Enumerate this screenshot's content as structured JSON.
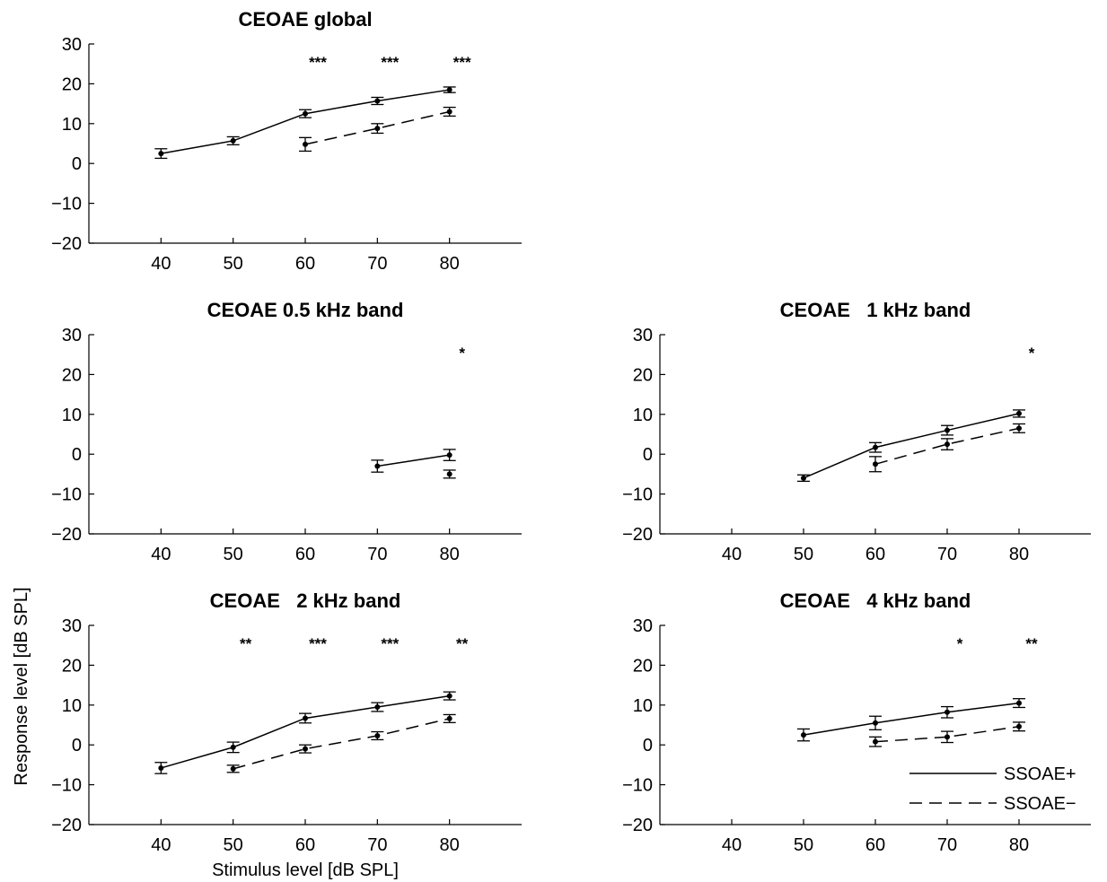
{
  "figure": {
    "ylabel": "Response level [dB SPL]",
    "xlabel": "Stimulus level [dB SPL]",
    "legend": [
      {
        "name": "SSOAE+",
        "style": "solid"
      },
      {
        "name": "SSOAE−",
        "style": "dashed"
      }
    ]
  },
  "chart_data": [
    {
      "type": "line",
      "title": "CEOAE global",
      "x_ticks": [
        40,
        50,
        60,
        70,
        80
      ],
      "y_ticks": [
        30,
        20,
        10,
        0,
        -10,
        -20
      ],
      "xlim": [
        30,
        90
      ],
      "ylim": [
        -20,
        30
      ],
      "series": [
        {
          "name": "SSOAE+",
          "style": "solid",
          "x": [
            40,
            50,
            60,
            70,
            80
          ],
          "y": [
            2.5,
            5.7,
            12.5,
            15.7,
            18.5
          ],
          "err": [
            1.2,
            1.0,
            1.0,
            0.9,
            0.7
          ]
        },
        {
          "name": "SSOAE−",
          "style": "dashed",
          "x": [
            60,
            70,
            80
          ],
          "y": [
            4.8,
            8.8,
            13.0
          ],
          "err": [
            1.7,
            1.2,
            1.1
          ]
        }
      ],
      "significance": [
        {
          "x": 60,
          "label": "***"
        },
        {
          "x": 70,
          "label": "***"
        },
        {
          "x": 80,
          "label": "***"
        }
      ]
    },
    {
      "type": "line",
      "title": "CEOAE 0.5 kHz band",
      "x_ticks": [
        40,
        50,
        60,
        70,
        80
      ],
      "y_ticks": [
        30,
        20,
        10,
        0,
        -10,
        -20
      ],
      "xlim": [
        30,
        90
      ],
      "ylim": [
        -20,
        30
      ],
      "series": [
        {
          "name": "SSOAE+",
          "style": "solid",
          "x": [
            70,
            80
          ],
          "y": [
            -3.0,
            -0.2
          ],
          "err": [
            1.5,
            1.4
          ]
        },
        {
          "name": "SSOAE−",
          "style": "dashed",
          "x": [
            80
          ],
          "y": [
            -5.0
          ],
          "err": [
            1.0
          ]
        }
      ],
      "significance": [
        {
          "x": 80,
          "label": "*"
        }
      ]
    },
    {
      "type": "line",
      "title": "CEOAE   1 kHz band",
      "x_ticks": [
        40,
        50,
        60,
        70,
        80
      ],
      "y_ticks": [
        30,
        20,
        10,
        0,
        -10,
        -20
      ],
      "xlim": [
        30,
        90
      ],
      "ylim": [
        -20,
        30
      ],
      "series": [
        {
          "name": "SSOAE+",
          "style": "solid",
          "x": [
            50,
            60,
            70,
            80
          ],
          "y": [
            -6.0,
            1.7,
            6.0,
            10.2
          ],
          "err": [
            0.8,
            1.2,
            1.2,
            0.9
          ]
        },
        {
          "name": "SSOAE−",
          "style": "dashed",
          "x": [
            60,
            70,
            80
          ],
          "y": [
            -2.5,
            2.5,
            6.5
          ],
          "err": [
            1.9,
            1.4,
            1.1
          ]
        }
      ],
      "significance": [
        {
          "x": 80,
          "label": "*"
        }
      ]
    },
    {
      "type": "line",
      "title": "CEOAE   2 kHz band",
      "x_ticks": [
        40,
        50,
        60,
        70,
        80
      ],
      "y_ticks": [
        30,
        20,
        10,
        0,
        -10,
        -20
      ],
      "xlim": [
        30,
        90
      ],
      "ylim": [
        -20,
        30
      ],
      "series": [
        {
          "name": "SSOAE+",
          "style": "solid",
          "x": [
            40,
            50,
            60,
            70,
            80
          ],
          "y": [
            -5.8,
            -0.6,
            6.7,
            9.5,
            12.3
          ],
          "err": [
            1.4,
            1.3,
            1.2,
            1.1,
            1.0
          ]
        },
        {
          "name": "SSOAE−",
          "style": "dashed",
          "x": [
            50,
            60,
            70,
            80
          ],
          "y": [
            -6.0,
            -1.0,
            2.3,
            6.6
          ],
          "err": [
            0.9,
            1.0,
            1.0,
            1.0
          ]
        }
      ],
      "significance": [
        {
          "x": 50,
          "label": "**"
        },
        {
          "x": 60,
          "label": "***"
        },
        {
          "x": 70,
          "label": "***"
        },
        {
          "x": 80,
          "label": "**"
        }
      ]
    },
    {
      "type": "line",
      "title": "CEOAE   4 kHz band",
      "x_ticks": [
        40,
        50,
        60,
        70,
        80
      ],
      "y_ticks": [
        30,
        20,
        10,
        0,
        -10,
        -20
      ],
      "xlim": [
        30,
        90
      ],
      "ylim": [
        -20,
        30
      ],
      "series": [
        {
          "name": "SSOAE+",
          "style": "solid",
          "x": [
            50,
            60,
            70,
            80
          ],
          "y": [
            2.5,
            5.5,
            8.2,
            10.5
          ],
          "err": [
            1.5,
            1.7,
            1.4,
            1.1
          ]
        },
        {
          "name": "SSOAE−",
          "style": "dashed",
          "x": [
            60,
            70,
            80
          ],
          "y": [
            0.8,
            2.0,
            4.6
          ],
          "err": [
            1.2,
            1.4,
            1.1
          ]
        }
      ],
      "significance": [
        {
          "x": 70,
          "label": "*"
        },
        {
          "x": 80,
          "label": "**"
        }
      ]
    }
  ]
}
